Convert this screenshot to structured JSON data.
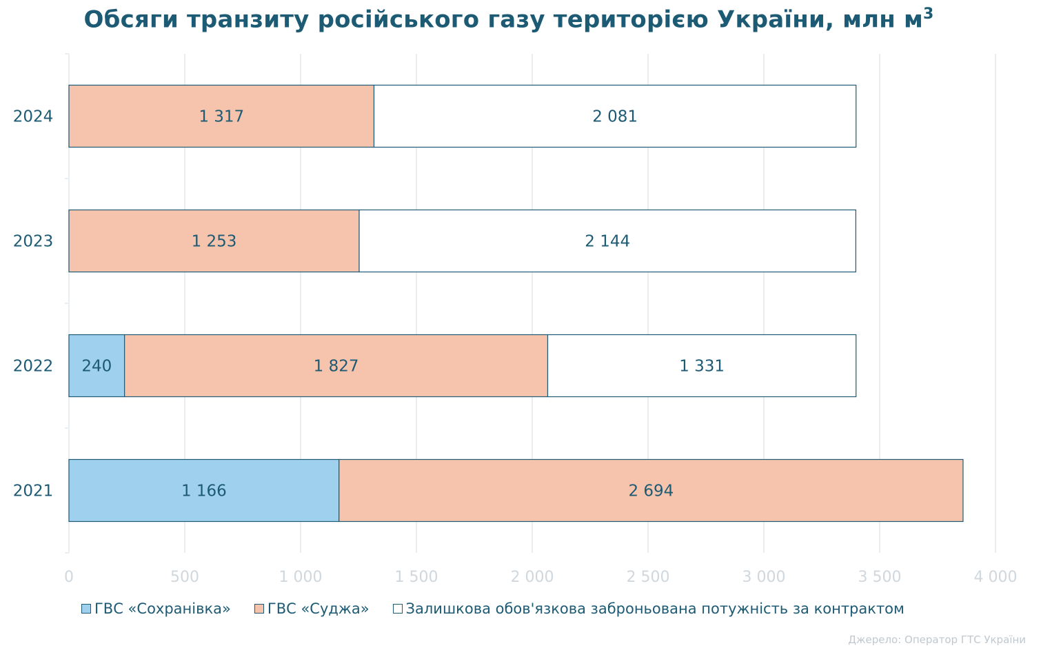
{
  "title": "Обсяги транзиту російського газу територією України, млн м",
  "title_sup": "3",
  "source": "Джерело: Оператор ГТС України",
  "colors": {
    "sokhranivka": "#9fd0ee",
    "sudzha": "#f6c4ad",
    "remaining": "#ffffff",
    "outline": "#1d5a73",
    "text": "#1d5a73",
    "axis_ticks": "#d0d7dd",
    "grid": "#e9eef2"
  },
  "chart_data": {
    "type": "bar",
    "orientation": "horizontal",
    "stacked": true,
    "categories": [
      "2024",
      "2023",
      "2022",
      "2021"
    ],
    "series": [
      {
        "name": "ГВС «Сохранівка»",
        "color": "#9fd0ee",
        "values": [
          0,
          0,
          240,
          1166
        ],
        "labels": [
          "",
          "",
          "240",
          "1 166"
        ]
      },
      {
        "name": "ГВС «Суджа»",
        "color": "#f6c4ad",
        "values": [
          1317,
          1253,
          1827,
          2694
        ],
        "labels": [
          "1 317",
          "1 253",
          "1 827",
          "2 694"
        ]
      },
      {
        "name": "Залишкова обов'язкова заброньована потужність за контрактом",
        "color": "#ffffff",
        "values": [
          2081,
          2144,
          1331,
          0
        ],
        "labels": [
          "2 081",
          "2 144",
          "1 331",
          ""
        ]
      }
    ],
    "xlim": [
      0,
      4000
    ],
    "xticks": [
      0,
      500,
      1000,
      1500,
      2000,
      2500,
      3000,
      3500,
      4000
    ],
    "xtick_labels": [
      "0",
      "500",
      "1 000",
      "1 500",
      "2 000",
      "2 500",
      "3 000",
      "3 500",
      "4 000"
    ],
    "grid": "vertical",
    "legend_position": "bottom"
  }
}
